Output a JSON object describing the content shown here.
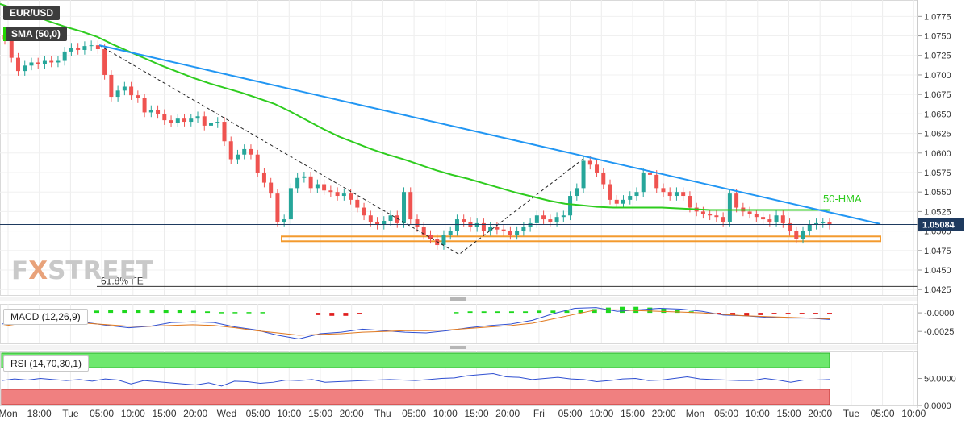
{
  "header": {
    "symbol": "EUR/USD",
    "indicator": "SMA (50,0)"
  },
  "watermark": {
    "prefix": "F",
    "mark": "X",
    "rest": "STREET"
  },
  "colors": {
    "up_candle": "#26a69a",
    "down_candle": "#ef5350",
    "sma_line": "#2ecc1e",
    "trend_line": "#2196f3",
    "support_band": "#f39a2e",
    "price_tag_bg": "#1e3a5f",
    "macd_line": "#2f4fd1",
    "signal_line": "#e0781e",
    "hist_up": "#1ed81e",
    "hist_down": "#e01e1e",
    "rsi_line": "#2f4fd1",
    "rsi_overbought_zone": "#6ee86e",
    "rsi_oversold_zone": "#f08080"
  },
  "chart_data": [
    {
      "type": "candlestick",
      "panel": "price",
      "title": "EUR/USD",
      "x_ticks": [
        "Mon",
        "18:00",
        "Tue",
        "05:00",
        "10:00",
        "15:00",
        "20:00",
        "Wed",
        "05:00",
        "10:00",
        "15:00",
        "20:00",
        "Thu",
        "05:00",
        "10:00",
        "15:00",
        "20:00",
        "Fri",
        "05:00",
        "10:00",
        "15:00",
        "20:00",
        "Mon",
        "05:00",
        "10:00",
        "15:00",
        "20:00",
        "Tue",
        "05:00",
        "10:00"
      ],
      "y_ticks": [
        "1.0775",
        "1.0750",
        "1.0725",
        "1.0700",
        "1.0675",
        "1.0650",
        "1.0625",
        "1.0600",
        "1.0575",
        "1.0550",
        "1.0525",
        "1.0500",
        "1.0475",
        "1.0450",
        "1.0425"
      ],
      "ylim": [
        1.0418,
        1.0796
      ],
      "last_price": "1.05084",
      "closes": [
        1.0745,
        1.0722,
        1.0705,
        1.0712,
        1.0716,
        1.0714,
        1.0718,
        1.0716,
        1.0718,
        1.073,
        1.0735,
        1.0732,
        1.0737,
        1.0738,
        1.0733,
        1.07,
        1.0672,
        1.068,
        1.0685,
        1.0674,
        1.067,
        1.0652,
        1.0655,
        1.065,
        1.0642,
        1.0639,
        1.0644,
        1.064,
        1.0644,
        1.0647,
        1.0635,
        1.0638,
        1.064,
        1.0615,
        1.0592,
        1.0598,
        1.0605,
        1.0598,
        1.0575,
        1.0562,
        1.0548,
        1.0512,
        1.0515,
        1.0555,
        1.0568,
        1.057,
        1.0555,
        1.056,
        1.0552,
        1.055,
        1.0545,
        1.0548,
        1.054,
        1.053,
        1.052,
        1.0512,
        1.0508,
        1.0513,
        1.052,
        1.051,
        1.055,
        1.0515,
        1.0505,
        1.0495,
        1.049,
        1.0482,
        1.0495,
        1.05,
        1.0515,
        1.0512,
        1.0505,
        1.051,
        1.05,
        1.0505,
        1.0502,
        1.05,
        1.0495,
        1.05,
        1.0505,
        1.051,
        1.052,
        1.0515,
        1.0512,
        1.0518,
        1.052,
        1.0545,
        1.0555,
        1.059,
        1.0585,
        1.0575,
        1.056,
        1.054,
        1.0535,
        1.054,
        1.0545,
        1.055,
        1.0575,
        1.0572,
        1.0555,
        1.055,
        1.0545,
        1.055,
        1.0545,
        1.053,
        1.0525,
        1.0522,
        1.052,
        1.0518,
        1.0512,
        1.0548,
        1.053,
        1.0525,
        1.0522,
        1.0518,
        1.0515,
        1.0512,
        1.052,
        1.051,
        1.05,
        1.049,
        1.05,
        1.0508,
        1.051,
        1.0511,
        1.0508
      ],
      "series": [
        {
          "name": "50-HMA",
          "x": [
            0,
            20,
            40,
            60,
            80,
            100,
            120,
            140,
            160,
            180,
            200,
            220,
            240,
            260,
            280,
            300,
            320,
            340,
            360,
            380,
            400,
            420,
            440,
            460,
            480,
            500,
            520,
            540,
            560,
            580,
            600,
            620,
            640,
            660,
            680,
            700,
            720,
            740,
            760,
            780,
            800,
            820,
            840,
            860,
            880,
            900,
            920,
            940,
            960,
            980,
            1000,
            1020,
            1028
          ],
          "values": [
            1.0791,
            1.0784,
            1.0777,
            1.0769,
            1.0762,
            1.0756,
            1.0749,
            1.0739,
            1.073,
            1.0721,
            1.0712,
            1.0704,
            1.0696,
            1.0689,
            1.0683,
            1.0677,
            1.067,
            1.0663,
            1.0653,
            1.0642,
            1.0631,
            1.0621,
            1.0613,
            1.0605,
            1.0598,
            1.0592,
            1.0585,
            1.0578,
            1.0572,
            1.0567,
            1.0561,
            1.0555,
            1.0549,
            1.0544,
            1.0539,
            1.0535,
            1.0533,
            1.0531,
            1.053,
            1.053,
            1.053,
            1.053,
            1.0529,
            1.0528,
            1.0527,
            1.0527,
            1.0527,
            1.0527,
            1.0527,
            1.0527,
            1.0527,
            1.0527,
            1.0527
          ]
        },
        {
          "name": "",
          "role": "descending trendline",
          "x": [
            123,
            1091
          ],
          "values": [
            1.0738,
            1.0509
          ]
        },
        {
          "name": "",
          "role": "support zone",
          "x": [
            349,
            1091
          ],
          "values": [
            1.049,
            1.049
          ]
        },
        {
          "name": "",
          "role": "dashed swing path",
          "x": [
            123,
            569,
            722
          ],
          "values": [
            1.0738,
            1.047,
            1.0592
          ]
        }
      ],
      "annotations": [
        {
          "text": "50-HMA"
        },
        {
          "text": "61.8% FE",
          "y": 1.0429
        }
      ]
    },
    {
      "type": "bar",
      "panel": "macd",
      "title": "MACD (12,26,9)",
      "y_ticks": [
        "-0.0000",
        "-0.0025"
      ],
      "ylim": [
        -0.0041,
        0.0012
      ],
      "histogram": [
        0.0003,
        0.0004,
        0.0004,
        0.0004,
        0.0004,
        0.0004,
        0.0004,
        0.0003,
        0.0002,
        0.0001,
        0.0001,
        0.0001,
        0.0001,
        0.0,
        0.0,
        0.0,
        -0.0003,
        -0.0004,
        -0.0004,
        -0.0002,
        0.0,
        0.0,
        0.0,
        0.0,
        0.0,
        0.0,
        0.0001,
        0.0002,
        0.0002,
        0.0002,
        0.0002,
        0.0002,
        0.0003,
        0.0003,
        0.0003,
        0.0004,
        0.0005,
        0.0007,
        0.0008,
        0.0008,
        0.0007,
        0.0006,
        0.0004,
        0.0002,
        0.0,
        -0.0001,
        -0.0003,
        -0.0004,
        -0.0003,
        -0.0002,
        -0.0002,
        -0.0002,
        -0.0001,
        -0.0001
      ],
      "series": [
        {
          "name": "MACD",
          "values": [
            -0.0015,
            -0.0011,
            -0.0009,
            -0.001,
            -0.0013,
            -0.0017,
            -0.002,
            -0.0018,
            -0.0013,
            -0.0012,
            -0.0013,
            -0.0019,
            -0.0023,
            -0.003,
            -0.0035,
            -0.0028,
            -0.0026,
            -0.0022,
            -0.0024,
            -0.0026,
            -0.0027,
            -0.0024,
            -0.002,
            -0.0017,
            -0.0015,
            -0.001,
            -0.0001,
            0.0006,
            0.0007,
            0.0002,
            0.0004,
            0.0006,
            0.0005,
            0.0002,
            -0.0003,
            -0.0004,
            -0.0006,
            -0.0007,
            -0.0007,
            -0.0009
          ]
        },
        {
          "name": "Signal",
          "values": [
            -0.0018,
            -0.0014,
            -0.0012,
            -0.0012,
            -0.0014,
            -0.0016,
            -0.0018,
            -0.0018,
            -0.0017,
            -0.0016,
            -0.0017,
            -0.002,
            -0.0024,
            -0.0027,
            -0.003,
            -0.0029,
            -0.0028,
            -0.0026,
            -0.0025,
            -0.0024,
            -0.0024,
            -0.0023,
            -0.0021,
            -0.0019,
            -0.0017,
            -0.0014,
            -0.0008,
            -0.0002,
            0.0004,
            0.0004,
            0.0003,
            0.0002,
            0.0001,
            0.0,
            -0.0002,
            -0.0004,
            -0.0005,
            -0.0006,
            -0.0007,
            -0.0008
          ]
        }
      ]
    },
    {
      "type": "line",
      "panel": "rsi",
      "title": "RSI (14,70,30,1)",
      "y_ticks": [
        "50.0000",
        "0.0000"
      ],
      "ylim": [
        0,
        100
      ],
      "levels": [
        70,
        30
      ],
      "series": [
        {
          "name": "RSI",
          "values": [
            46,
            49,
            47,
            50,
            48,
            46,
            48,
            45,
            49,
            47,
            40,
            46,
            44,
            42,
            40,
            38,
            42,
            36,
            45,
            44,
            41,
            43,
            47,
            46,
            48,
            43,
            44,
            45,
            46,
            47,
            48,
            47,
            46,
            48,
            50,
            51,
            55,
            57,
            59,
            53,
            52,
            48,
            50,
            52,
            49,
            48,
            44,
            46,
            49,
            50,
            46,
            47,
            50,
            53,
            49,
            48,
            47,
            46,
            46,
            50,
            47,
            43,
            47,
            47,
            48
          ]
        }
      ]
    }
  ]
}
